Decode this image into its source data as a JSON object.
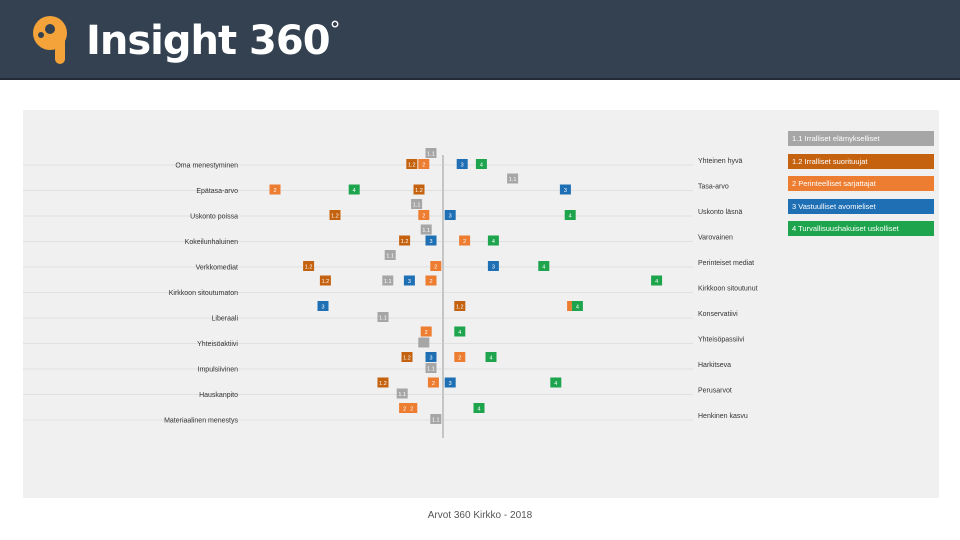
{
  "header": {
    "brand": "Insight 360",
    "degree": "°"
  },
  "colors": {
    "topbar": "#344151",
    "logo_orange": "#f3a33a",
    "c11": "#a6a6a6",
    "c12": "#c4620f",
    "c2": "#ed7d31",
    "c3": "#1f6fb5",
    "c4": "#1ea44c",
    "panel": "#f0f0f0"
  },
  "legend": [
    {
      "key": "c11",
      "label": "1.1 Irralliset elämykselliset"
    },
    {
      "key": "c12",
      "label": "1.2 Irralliset suorituujat"
    },
    {
      "key": "c2",
      "label": "2 Perinteelliset sarjattajat"
    },
    {
      "key": "c3",
      "label": "3 Vastuulliset avomieliset"
    },
    {
      "key": "c4",
      "label": "4 Turvallisuushakuiset uskolliset"
    }
  ],
  "footer": "Arvot 360 Kirkko - 2018",
  "chart_data": {
    "type": "scatter",
    "title": "",
    "xlabel": "",
    "ylabel": "",
    "rows": [
      {
        "left": "Oma menestyminen",
        "right": "Yhteinen hyvä",
        "points": [
          {
            "g": "1.1",
            "label": "1.1",
            "x": -0.05,
            "lane": 0
          },
          {
            "g": "1.2",
            "label": "1.2",
            "x": -0.13,
            "lane": 1
          },
          {
            "g": "2",
            "label": "2",
            "x": -0.08,
            "lane": 1
          },
          {
            "g": "3",
            "label": "3",
            "x": 0.08,
            "lane": 1
          },
          {
            "g": "4",
            "label": "4",
            "x": 0.16,
            "lane": 1
          }
        ]
      },
      {
        "left": "Epätasa-arvo",
        "right": "Tasa-arvo",
        "points": [
          {
            "g": "1.1",
            "label": "1.1",
            "x": 0.29,
            "lane": 0
          },
          {
            "g": "2",
            "label": "2",
            "x": -0.7,
            "lane": 1
          },
          {
            "g": "4",
            "label": "4",
            "x": -0.37,
            "lane": 1
          },
          {
            "g": "1.2",
            "label": "1.2",
            "x": -0.1,
            "lane": 1
          },
          {
            "g": "3",
            "label": "3",
            "x": 0.51,
            "lane": 1
          }
        ]
      },
      {
        "left": "Uskonto poissa",
        "right": "Uskonto läsnä",
        "points": [
          {
            "g": "1.1",
            "label": "1.1",
            "x": -0.11,
            "lane": 0
          },
          {
            "g": "1.2",
            "label": "1.2",
            "x": -0.45,
            "lane": 1
          },
          {
            "g": "2",
            "label": "2",
            "x": -0.08,
            "lane": 1
          },
          {
            "g": "3",
            "label": "3",
            "x": 0.03,
            "lane": 1
          },
          {
            "g": "4",
            "label": "4",
            "x": 0.53,
            "lane": 1
          }
        ]
      },
      {
        "left": "Kokeilunhaluinen",
        "right": "Varovainen",
        "points": [
          {
            "g": "1.1",
            "label": "1.1",
            "x": -0.07,
            "lane": 0
          },
          {
            "g": "1.2",
            "label": "1.2",
            "x": -0.16,
            "lane": 1
          },
          {
            "g": "3",
            "label": "3",
            "x": -0.05,
            "lane": 1
          },
          {
            "g": "2",
            "label": "2",
            "x": 0.09,
            "lane": 1
          },
          {
            "g": "4",
            "label": "4",
            "x": 0.21,
            "lane": 1
          }
        ]
      },
      {
        "left": "Verkkomediat",
        "right": "Perinteiset mediat",
        "points": [
          {
            "g": "1.1",
            "label": "1.1",
            "x": -0.22,
            "lane": 0
          },
          {
            "g": "1.2",
            "label": "1.2",
            "x": -0.56,
            "lane": 1
          },
          {
            "g": "2",
            "label": "2",
            "x": -0.03,
            "lane": 1
          },
          {
            "g": "3",
            "label": "3",
            "x": 0.21,
            "lane": 1
          },
          {
            "g": "4",
            "label": "4",
            "x": 0.42,
            "lane": 1
          }
        ]
      },
      {
        "left": "Kirkkoon sitoutumaton",
        "right": "Kirkkoon sitoutunut",
        "points": [
          {
            "g": "1.2",
            "label": "1.2",
            "x": -0.49,
            "lane": 0
          },
          {
            "g": "1.1",
            "label": "1.1",
            "x": -0.23,
            "lane": 0
          },
          {
            "g": "3",
            "label": "3",
            "x": -0.14,
            "lane": 0
          },
          {
            "g": "2",
            "label": "2",
            "x": -0.05,
            "lane": 0
          },
          {
            "g": "4",
            "label": "4",
            "x": 0.89,
            "lane": 0
          }
        ]
      },
      {
        "left": "Liberaali",
        "right": "Konservatiivi",
        "points": [
          {
            "g": "3",
            "label": "3",
            "x": -0.5,
            "lane": 0
          },
          {
            "g": "1.2",
            "label": "1.2",
            "x": 0.07,
            "lane": 0
          },
          {
            "g": "2",
            "label": "2",
            "x": 0.54,
            "lane": 0
          },
          {
            "g": "4",
            "label": "4",
            "x": 0.56,
            "lane": 0
          },
          {
            "g": "1.1",
            "label": "1.1",
            "x": -0.25,
            "lane": 1
          }
        ]
      },
      {
        "left": "Yhteisöaktiivi",
        "right": "Yhteisöpassiivi",
        "points": [
          {
            "g": "1.1",
            "label": "",
            "x": -0.08,
            "lane": 1
          },
          {
            "g": "2",
            "label": "2",
            "x": -0.07,
            "lane": 0
          },
          {
            "g": "4",
            "label": "4",
            "x": 0.07,
            "lane": 0
          }
        ]
      },
      {
        "left": "Impulsiivinen",
        "right": "Harkitseva",
        "points": [
          {
            "g": "1.2",
            "label": "1.2",
            "x": -0.15,
            "lane": 0
          },
          {
            "g": "3",
            "label": "3",
            "x": -0.05,
            "lane": 0
          },
          {
            "g": "2",
            "label": "2",
            "x": 0.07,
            "lane": 0
          },
          {
            "g": "4",
            "label": "4",
            "x": 0.2,
            "lane": 0
          },
          {
            "g": "1.1",
            "label": "1.1",
            "x": -0.05,
            "lane": 1
          }
        ]
      },
      {
        "left": "Hauskanpito",
        "right": "Perusarvot",
        "points": [
          {
            "g": "1.2",
            "label": "1.2",
            "x": -0.25,
            "lane": 0
          },
          {
            "g": "2",
            "label": "2",
            "x": -0.04,
            "lane": 0
          },
          {
            "g": "3",
            "label": "3",
            "x": 0.03,
            "lane": 0
          },
          {
            "g": "4",
            "label": "4",
            "x": 0.47,
            "lane": 0
          },
          {
            "g": "1.1",
            "label": "1.1",
            "x": -0.17,
            "lane": 1
          }
        ]
      },
      {
        "left": "Materiaalinen menestys",
        "right": "Henkinen kasvu",
        "points": [
          {
            "g": "2",
            "label": "2",
            "x": -0.16,
            "lane": 0
          },
          {
            "g": "2",
            "label": "2",
            "x": -0.13,
            "lane": 0
          },
          {
            "g": "4",
            "label": "4",
            "x": 0.15,
            "lane": 0
          },
          {
            "g": "1.1",
            "label": "1.1",
            "x": -0.03,
            "lane": 1
          }
        ]
      }
    ]
  }
}
